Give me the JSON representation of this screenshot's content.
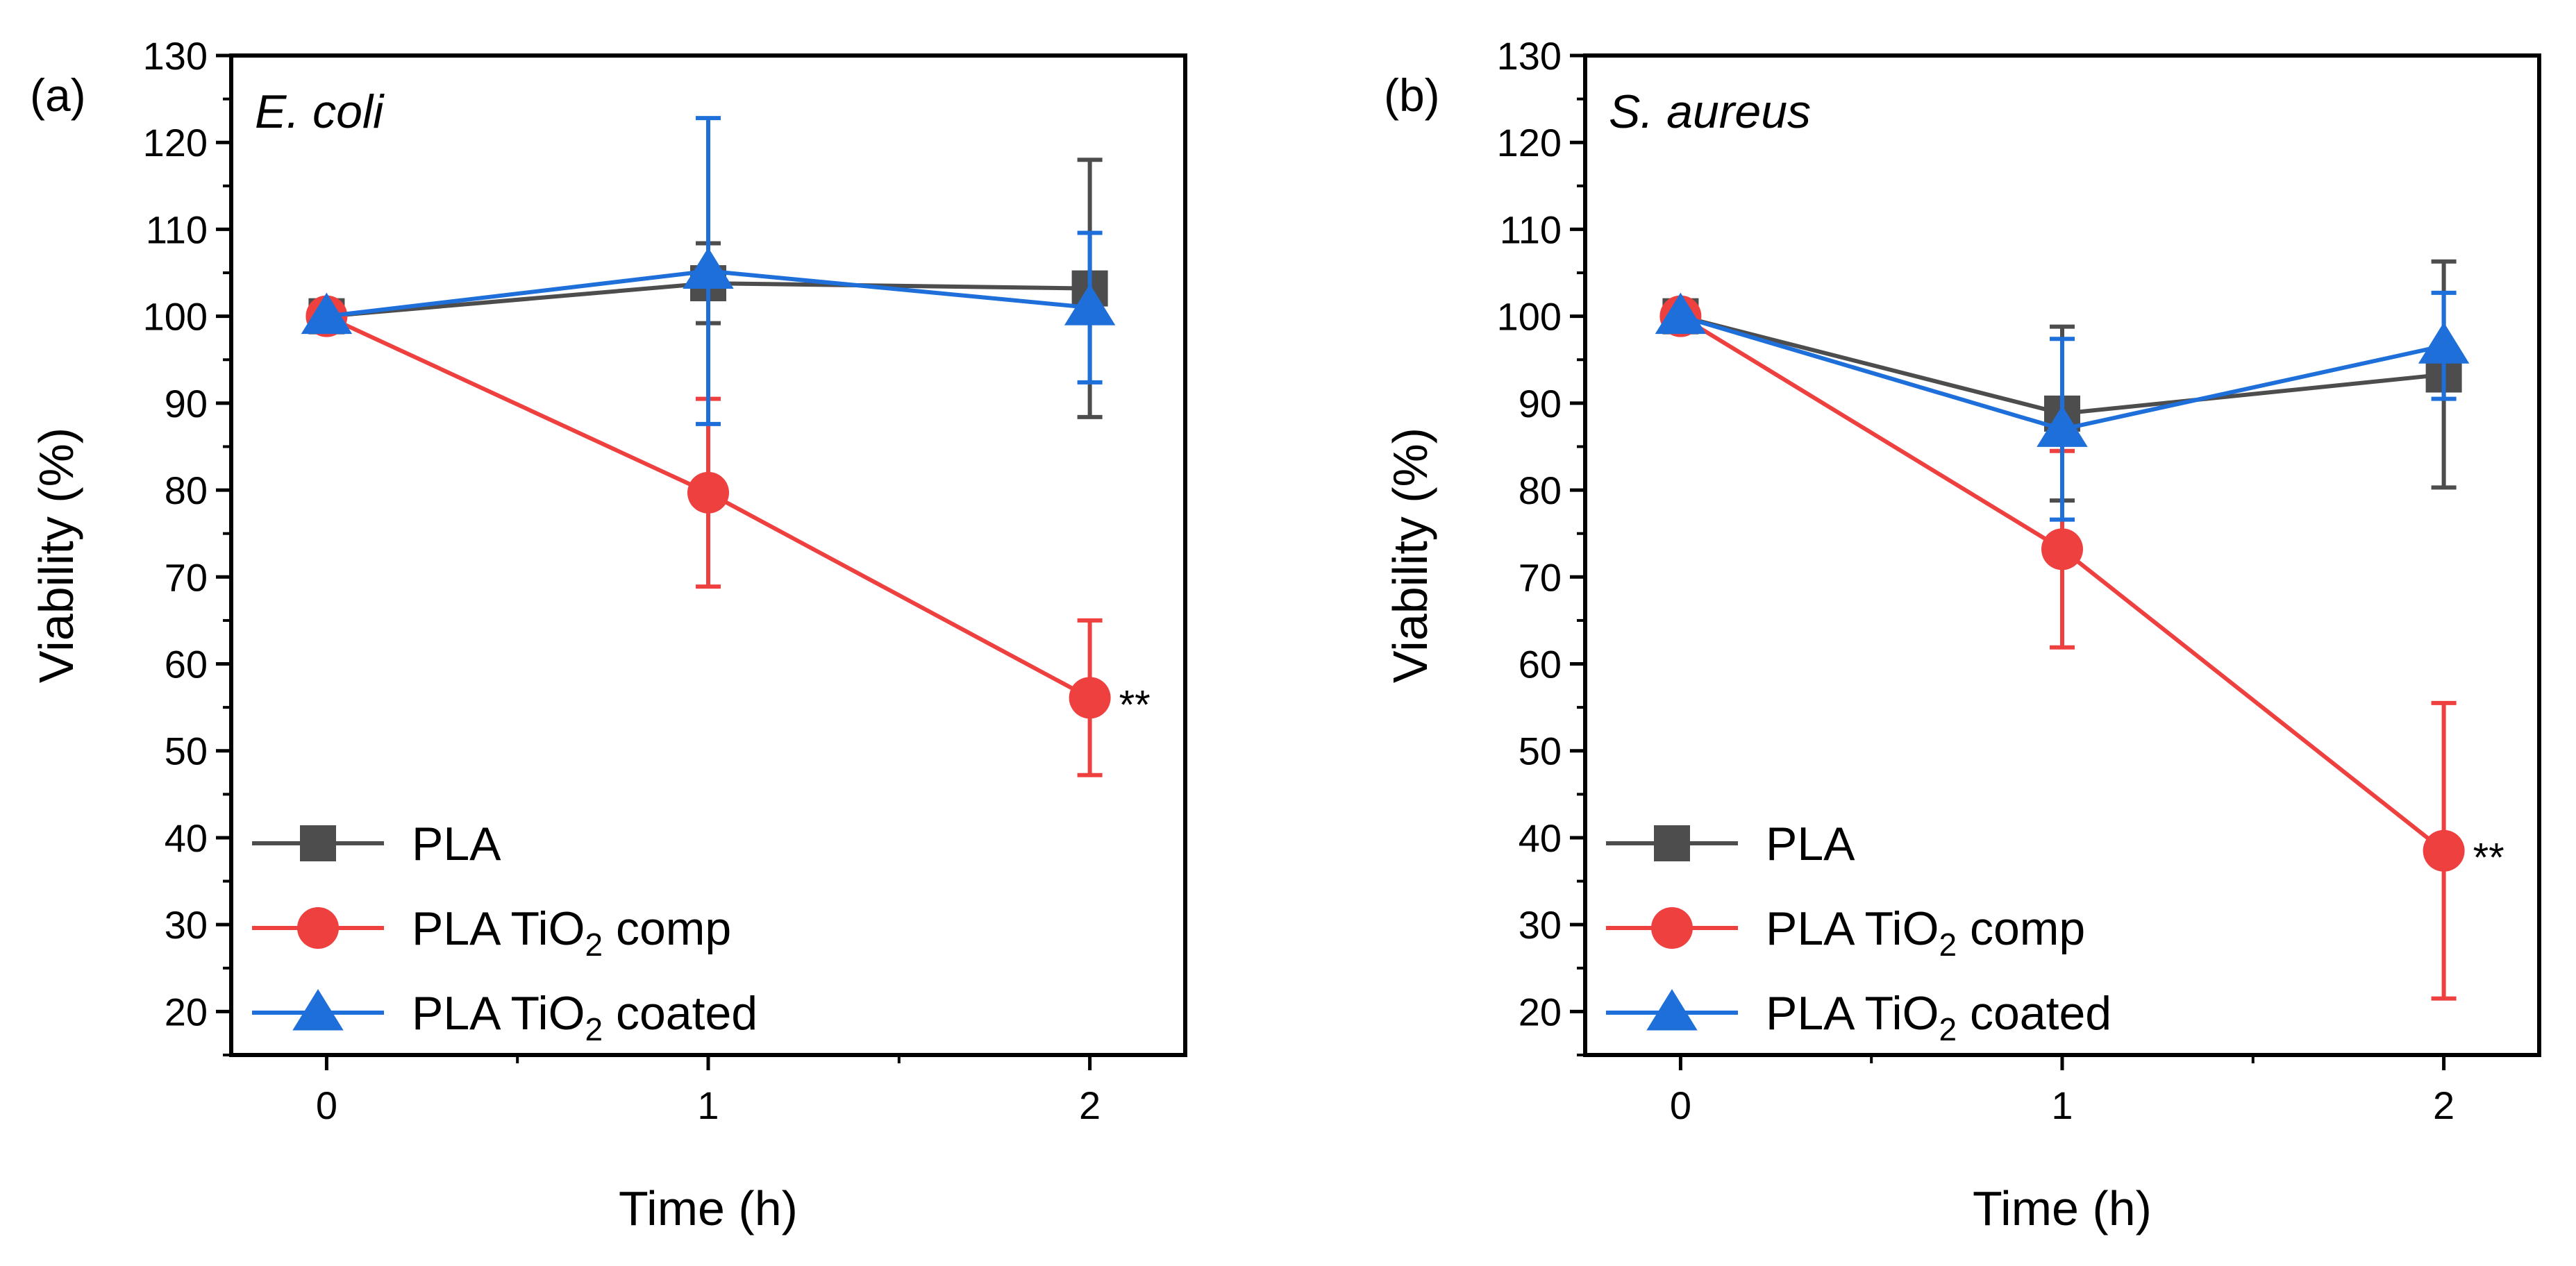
{
  "chart_data": [
    {
      "type": "line",
      "panel": "(a)",
      "title": "E. coli",
      "xlabel": "Time (h)",
      "ylabel": "Viability (%)",
      "xlim": [
        -0.25,
        2.25
      ],
      "ylim": [
        15,
        130
      ],
      "xticks": [
        0,
        1,
        2
      ],
      "yticks": [
        20,
        30,
        40,
        50,
        60,
        70,
        80,
        90,
        100,
        110,
        120,
        130
      ],
      "x": [
        0,
        1,
        2
      ],
      "series": [
        {
          "name": "PLA",
          "formula_sub": "",
          "formula_suffix": "",
          "color": "#4d4d4d",
          "marker": "square",
          "values": [
            100,
            103.8,
            103.2
          ],
          "errors": [
            0,
            4.6,
            14.8
          ]
        },
        {
          "name": "PLA TiO",
          "formula_sub": "2",
          "formula_suffix": " comp",
          "color": "#ef4040",
          "marker": "circle",
          "values": [
            100,
            79.7,
            56.1
          ],
          "errors": [
            0,
            10.8,
            8.9
          ]
        },
        {
          "name": "PLA TiO",
          "formula_sub": "2",
          "formula_suffix": " coated",
          "color": "#1e6fd9",
          "marker": "triangle",
          "values": [
            100,
            105.2,
            101.0
          ],
          "errors": [
            0,
            17.6,
            8.6
          ]
        }
      ],
      "annotations": [
        {
          "text": "**",
          "series": 1,
          "x": 2
        }
      ],
      "legend_position": "bottom-left"
    },
    {
      "type": "line",
      "panel": "(b)",
      "title": "S. aureus",
      "xlabel": "Time (h)",
      "ylabel": "Viability (%)",
      "xlim": [
        -0.25,
        2.25
      ],
      "ylim": [
        15,
        130
      ],
      "xticks": [
        0,
        1,
        2
      ],
      "yticks": [
        20,
        30,
        40,
        50,
        60,
        70,
        80,
        90,
        100,
        110,
        120,
        130
      ],
      "x": [
        0,
        1,
        2
      ],
      "series": [
        {
          "name": "PLA",
          "formula_sub": "",
          "formula_suffix": "",
          "color": "#4d4d4d",
          "marker": "square",
          "values": [
            100,
            88.8,
            93.3
          ],
          "errors": [
            0,
            10.0,
            13.0
          ]
        },
        {
          "name": "PLA TiO",
          "formula_sub": "2",
          "formula_suffix": " comp",
          "color": "#ef4040",
          "marker": "circle",
          "values": [
            100,
            73.2,
            38.5
          ],
          "errors": [
            0,
            11.3,
            17.0
          ]
        },
        {
          "name": "PLA TiO",
          "formula_sub": "2",
          "formula_suffix": " coated",
          "color": "#1e6fd9",
          "marker": "triangle",
          "values": [
            100,
            87.0,
            96.6
          ],
          "errors": [
            0,
            10.4,
            6.1
          ]
        }
      ],
      "annotations": [
        {
          "text": "**",
          "series": 1,
          "x": 2
        }
      ],
      "legend_position": "bottom-left"
    }
  ]
}
